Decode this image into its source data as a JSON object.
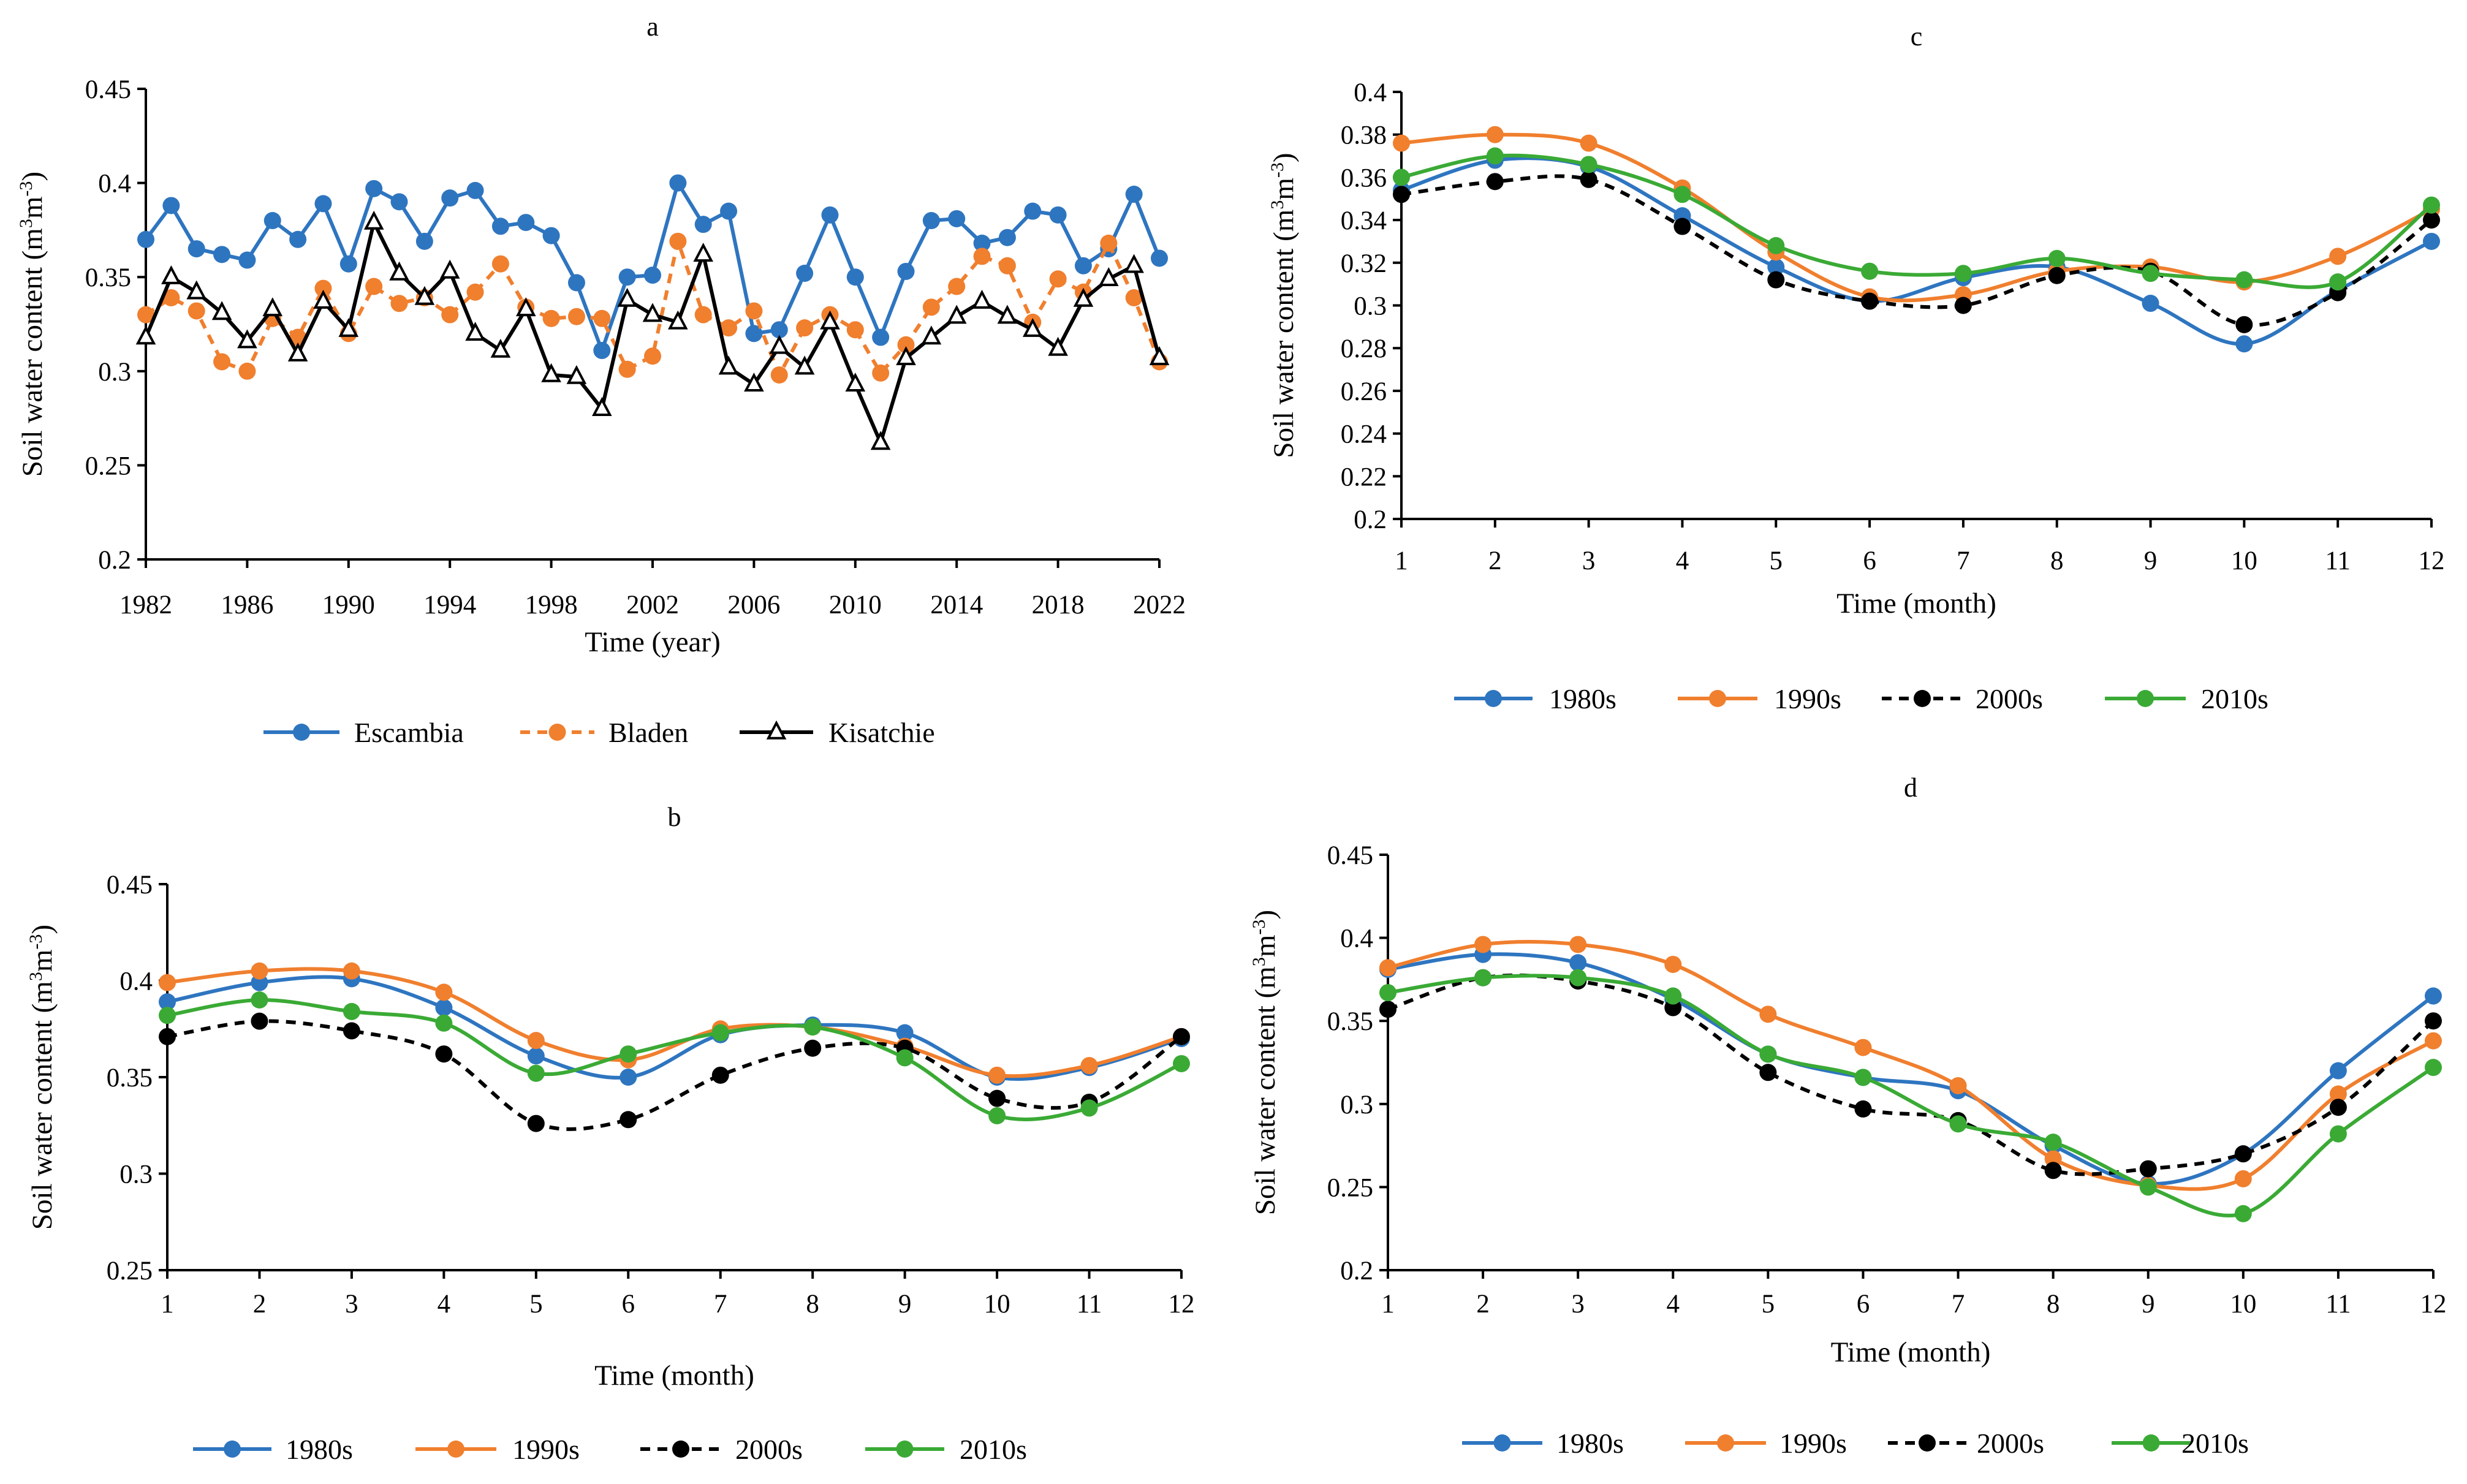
{
  "chart_data": [
    {
      "panel": "a",
      "type": "line",
      "title": "a",
      "xlabel": "Time (year)",
      "ylabel_main": "Soil water content (m",
      "ylabel_sup1": "3",
      "ylabel_mid": "m",
      "ylabel_sup2": "-3",
      "ylabel_end": ")",
      "xlim": [
        1982,
        2022
      ],
      "ylim": [
        0.2,
        0.45
      ],
      "xticks": [
        1982,
        1986,
        1990,
        1994,
        1998,
        2002,
        2006,
        2010,
        2014,
        2018,
        2022
      ],
      "yticks": [
        "0.2",
        "0.25",
        "0.3",
        "0.35",
        "0.4",
        "0.45"
      ],
      "x": [
        1982,
        1983,
        1984,
        1985,
        1986,
        1987,
        1988,
        1989,
        1990,
        1991,
        1992,
        1993,
        1994,
        1995,
        1996,
        1997,
        1998,
        1999,
        2000,
        2001,
        2002,
        2003,
        2004,
        2005,
        2006,
        2007,
        2008,
        2009,
        2010,
        2011,
        2012,
        2013,
        2014,
        2015,
        2016,
        2017,
        2018,
        2019,
        2020,
        2021,
        2022
      ],
      "series": [
        {
          "name": "Escambia",
          "color": "#2E75C0",
          "style": "solid",
          "marker": "circle",
          "smooth": false,
          "values": [
            0.37,
            0.388,
            0.365,
            0.362,
            0.359,
            0.38,
            0.37,
            0.389,
            0.357,
            0.397,
            0.39,
            0.369,
            0.392,
            0.396,
            0.377,
            0.379,
            0.372,
            0.347,
            0.311,
            0.35,
            0.351,
            0.4,
            0.378,
            0.385,
            0.32,
            0.322,
            0.352,
            0.383,
            0.35,
            0.318,
            0.353,
            0.38,
            0.381,
            0.368,
            0.371,
            0.385,
            0.383,
            0.356,
            0.365,
            0.394,
            0.36
          ]
        },
        {
          "name": "Bladen",
          "color": "#F07F2E",
          "style": "dashed",
          "marker": "circle",
          "smooth": false,
          "values": [
            0.33,
            0.339,
            0.332,
            0.305,
            0.3,
            0.328,
            0.318,
            0.344,
            0.32,
            0.345,
            0.336,
            0.339,
            0.33,
            0.342,
            0.357,
            0.334,
            0.328,
            0.329,
            0.328,
            0.301,
            0.308,
            0.369,
            0.33,
            0.323,
            0.332,
            0.298,
            0.323,
            0.33,
            0.322,
            0.299,
            0.314,
            0.334,
            0.345,
            0.361,
            0.356,
            0.326,
            0.349,
            0.342,
            0.368,
            0.339,
            0.305
          ]
        },
        {
          "name": "Kisatchie",
          "color": "#000000",
          "style": "solid",
          "marker": "triangle",
          "smooth": false,
          "values": [
            0.318,
            0.35,
            0.342,
            0.331,
            0.316,
            0.333,
            0.309,
            0.337,
            0.322,
            0.379,
            0.352,
            0.339,
            0.353,
            0.32,
            0.311,
            0.333,
            0.298,
            0.297,
            0.28,
            0.338,
            0.33,
            0.326,
            0.362,
            0.302,
            0.293,
            0.313,
            0.302,
            0.326,
            0.293,
            0.262,
            0.307,
            0.318,
            0.329,
            0.337,
            0.329,
            0.322,
            0.312,
            0.338,
            0.349,
            0.356,
            0.307
          ]
        }
      ]
    },
    {
      "panel": "b",
      "type": "line",
      "title": "b",
      "xlabel": "Time (month)",
      "ylabel_main": "Soil water content (m",
      "ylabel_sup1": "3",
      "ylabel_mid": "m",
      "ylabel_sup2": "-3",
      "ylabel_end": ")",
      "xlim": [
        1,
        12
      ],
      "ylim": [
        0.25,
        0.45
      ],
      "xticks": [
        1,
        2,
        3,
        4,
        5,
        6,
        7,
        8,
        9,
        10,
        11,
        12
      ],
      "yticks": [
        "0.25",
        "0.3",
        "0.35",
        "0.4",
        "0.45"
      ],
      "x": [
        1,
        2,
        3,
        4,
        5,
        6,
        7,
        8,
        9,
        10,
        11,
        12
      ],
      "series": [
        {
          "name": "1980s",
          "color": "#2E75C0",
          "style": "solid",
          "marker": "circle",
          "smooth": true,
          "values": [
            0.389,
            0.399,
            0.401,
            0.386,
            0.361,
            0.35,
            0.372,
            0.377,
            0.373,
            0.35,
            0.355,
            0.37
          ]
        },
        {
          "name": "1990s",
          "color": "#F07F2E",
          "style": "solid",
          "marker": "circle",
          "smooth": true,
          "values": [
            0.399,
            0.405,
            0.405,
            0.394,
            0.369,
            0.359,
            0.375,
            0.376,
            0.366,
            0.351,
            0.356,
            0.371
          ]
        },
        {
          "name": "2000s",
          "color": "#000000",
          "style": "dashed",
          "marker": "circle",
          "smooth": true,
          "values": [
            0.371,
            0.379,
            0.374,
            0.362,
            0.326,
            0.328,
            0.351,
            0.365,
            0.365,
            0.339,
            0.337,
            0.371
          ]
        },
        {
          "name": "2010s",
          "color": "#3AAA35",
          "style": "solid",
          "marker": "circle",
          "smooth": true,
          "values": [
            0.382,
            0.39,
            0.384,
            0.378,
            0.352,
            0.362,
            0.373,
            0.376,
            0.36,
            0.33,
            0.334,
            0.357
          ]
        }
      ]
    },
    {
      "panel": "c",
      "type": "line",
      "title": "c",
      "xlabel": "Time (month)",
      "ylabel_main": "Soil water content (m",
      "ylabel_sup1": "3",
      "ylabel_mid": "m",
      "ylabel_sup2": "-3",
      "ylabel_end": ")",
      "xlim": [
        1,
        12
      ],
      "ylim": [
        0.2,
        0.4
      ],
      "xticks": [
        1,
        2,
        3,
        4,
        5,
        6,
        7,
        8,
        9,
        10,
        11,
        12
      ],
      "yticks": [
        "0.2",
        "0.22",
        "0.24",
        "0.26",
        "0.28",
        "0.3",
        "0.32",
        "0.34",
        "0.36",
        "0.38",
        "0.4"
      ],
      "x": [
        1,
        2,
        3,
        4,
        5,
        6,
        7,
        8,
        9,
        10,
        11,
        12
      ],
      "series": [
        {
          "name": "1980s",
          "color": "#2E75C0",
          "style": "solid",
          "marker": "circle",
          "smooth": true,
          "values": [
            0.354,
            0.368,
            0.365,
            0.342,
            0.318,
            0.302,
            0.313,
            0.318,
            0.301,
            0.282,
            0.307,
            0.33
          ]
        },
        {
          "name": "1990s",
          "color": "#F07F2E",
          "style": "solid",
          "marker": "circle",
          "smooth": true,
          "values": [
            0.376,
            0.38,
            0.376,
            0.355,
            0.325,
            0.304,
            0.305,
            0.316,
            0.318,
            0.311,
            0.323,
            0.345
          ]
        },
        {
          "name": "2000s",
          "color": "#000000",
          "style": "dashed",
          "marker": "circle",
          "smooth": true,
          "values": [
            0.352,
            0.358,
            0.359,
            0.337,
            0.312,
            0.302,
            0.3,
            0.314,
            0.316,
            0.291,
            0.306,
            0.34
          ]
        },
        {
          "name": "2010s",
          "color": "#3AAA35",
          "style": "solid",
          "marker": "circle",
          "smooth": true,
          "values": [
            0.36,
            0.37,
            0.366,
            0.352,
            0.328,
            0.316,
            0.315,
            0.322,
            0.315,
            0.312,
            0.311,
            0.347
          ]
        }
      ]
    },
    {
      "panel": "d",
      "type": "line",
      "title": "d",
      "xlabel": "Time (month)",
      "ylabel_main": "Soil water content (m",
      "ylabel_sup1": "3",
      "ylabel_mid": "m",
      "ylabel_sup2": "-3",
      "ylabel_end": ")",
      "xlim": [
        1,
        12
      ],
      "ylim": [
        0.2,
        0.45
      ],
      "xticks": [
        1,
        2,
        3,
        4,
        5,
        6,
        7,
        8,
        9,
        10,
        11,
        12
      ],
      "yticks": [
        "0.2",
        "0.25",
        "0.3",
        "0.35",
        "0.4",
        "0.45"
      ],
      "x": [
        1,
        2,
        3,
        4,
        5,
        6,
        7,
        8,
        9,
        10,
        11,
        12
      ],
      "series": [
        {
          "name": "1980s",
          "color": "#2E75C0",
          "style": "solid",
          "marker": "circle",
          "smooth": true,
          "values": [
            0.381,
            0.39,
            0.385,
            0.363,
            0.33,
            0.316,
            0.308,
            0.275,
            0.252,
            0.27,
            0.32,
            0.365
          ]
        },
        {
          "name": "1990s",
          "color": "#F07F2E",
          "style": "solid",
          "marker": "circle",
          "smooth": true,
          "values": [
            0.382,
            0.396,
            0.396,
            0.384,
            0.354,
            0.334,
            0.311,
            0.267,
            0.251,
            0.255,
            0.306,
            0.338
          ]
        },
        {
          "name": "2000s",
          "color": "#000000",
          "style": "dashed",
          "marker": "circle",
          "smooth": true,
          "values": [
            0.357,
            0.376,
            0.374,
            0.358,
            0.319,
            0.297,
            0.29,
            0.26,
            0.261,
            0.27,
            0.298,
            0.35
          ]
        },
        {
          "name": "2010s",
          "color": "#3AAA35",
          "style": "solid",
          "marker": "circle",
          "smooth": true,
          "values": [
            0.367,
            0.376,
            0.376,
            0.365,
            0.33,
            0.316,
            0.288,
            0.277,
            0.25,
            0.234,
            0.282,
            0.322
          ]
        }
      ]
    }
  ]
}
